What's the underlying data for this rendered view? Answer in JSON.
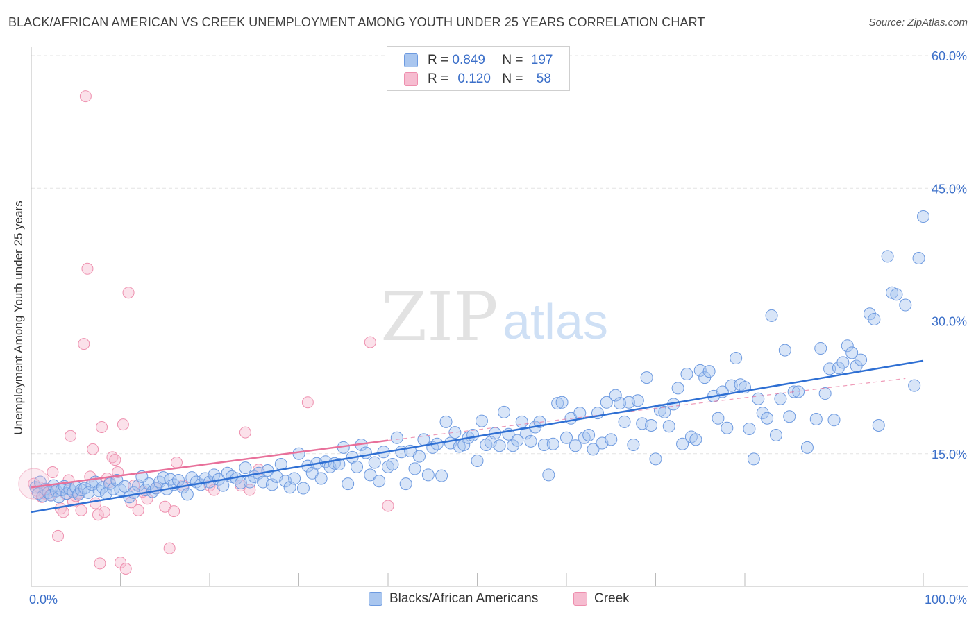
{
  "title": "BLACK/AFRICAN AMERICAN VS CREEK UNEMPLOYMENT AMONG YOUTH UNDER 25 YEARS CORRELATION CHART",
  "source": "Source: ZipAtlas.com",
  "watermark": {
    "zip": "ZIP",
    "atlas": "atlas"
  },
  "legend": {
    "rows": [
      {
        "r_label": "R = ",
        "r_value": "0.849",
        "n_label": "N = ",
        "n_value": "197"
      },
      {
        "r_label": "R = ",
        "r_value": "0.120",
        "n_label": "N = ",
        "n_value": "58"
      }
    ]
  },
  "colors": {
    "blue_fill": "#a9c6ef",
    "blue_stroke": "#6d9ae0",
    "blue_line": "#2e6fd3",
    "pink_fill": "#f6bcd0",
    "pink_stroke": "#ee8fae",
    "pink_line": "#e8709a",
    "tick_label": "#3b6fc9",
    "grid": "#e3e3e3",
    "axis": "#bbbbbb"
  },
  "chart_data": {
    "type": "scatter",
    "title": "BLACK/AFRICAN AMERICAN VS CREEK UNEMPLOYMENT AMONG YOUTH UNDER 25 YEARS CORRELATION CHART",
    "xlabel": "",
    "ylabel": "Unemployment Among Youth under 25 years",
    "xlim": [
      0,
      100
    ],
    "ylim": [
      0,
      60
    ],
    "x_tick_labels": [
      "0.0%",
      "100.0%"
    ],
    "y_ticks": [
      15,
      30,
      45,
      60
    ],
    "y_tick_labels": [
      "15.0%",
      "30.0%",
      "45.0%",
      "60.0%"
    ],
    "grid": true,
    "legend_position": "top-center",
    "series": [
      {
        "name": "Blacks/African Americans",
        "r": 0.849,
        "n": 197,
        "trend": {
          "x": [
            0,
            100
          ],
          "y": [
            8.4,
            25.5
          ]
        },
        "points": [
          [
            0.5,
            11.2
          ],
          [
            0.8,
            10.5
          ],
          [
            1.0,
            11.8
          ],
          [
            1.3,
            10.2
          ],
          [
            1.6,
            11.0
          ],
          [
            1.9,
            10.6
          ],
          [
            2.2,
            10.3
          ],
          [
            2.5,
            11.4
          ],
          [
            2.8,
            10.8
          ],
          [
            3.1,
            10.1
          ],
          [
            3.4,
            10.9
          ],
          [
            3.7,
            11.3
          ],
          [
            4.0,
            10.5
          ],
          [
            4.3,
            11.0
          ],
          [
            4.7,
            10.7
          ],
          [
            5.0,
            11.2
          ],
          [
            5.3,
            10.4
          ],
          [
            5.6,
            10.9
          ],
          [
            6.0,
            11.1
          ],
          [
            6.4,
            10.6
          ],
          [
            6.8,
            11.5
          ],
          [
            7.2,
            11.8
          ],
          [
            7.6,
            10.8
          ],
          [
            8.0,
            11.2
          ],
          [
            8.4,
            10.5
          ],
          [
            8.8,
            11.6
          ],
          [
            9.2,
            11.0
          ],
          [
            9.6,
            12.0
          ],
          [
            10.0,
            10.9
          ],
          [
            10.5,
            11.3
          ],
          [
            11.0,
            10.1
          ],
          [
            11.5,
            10.6
          ],
          [
            12.0,
            11.4
          ],
          [
            12.4,
            12.4
          ],
          [
            12.8,
            10.9
          ],
          [
            13.2,
            11.6
          ],
          [
            13.6,
            10.7
          ],
          [
            14.0,
            11.1
          ],
          [
            14.4,
            11.8
          ],
          [
            14.8,
            12.3
          ],
          [
            15.2,
            11.0
          ],
          [
            15.6,
            12.1
          ],
          [
            16.0,
            11.5
          ],
          [
            16.5,
            12.0
          ],
          [
            17.0,
            11.2
          ],
          [
            17.5,
            10.4
          ],
          [
            18.0,
            12.3
          ],
          [
            18.5,
            11.8
          ],
          [
            19.0,
            11.5
          ],
          [
            19.5,
            12.2
          ],
          [
            20.0,
            11.8
          ],
          [
            20.5,
            12.6
          ],
          [
            21.0,
            12.1
          ],
          [
            21.5,
            11.4
          ],
          [
            22.0,
            12.8
          ],
          [
            22.5,
            12.4
          ],
          [
            23.0,
            12.2
          ],
          [
            23.5,
            11.7
          ],
          [
            24.0,
            13.4
          ],
          [
            24.5,
            11.8
          ],
          [
            25.0,
            12.4
          ],
          [
            25.5,
            12.8
          ],
          [
            26.0,
            11.8
          ],
          [
            26.5,
            13.1
          ],
          [
            27.0,
            11.5
          ],
          [
            27.5,
            12.4
          ],
          [
            28.0,
            13.8
          ],
          [
            28.5,
            11.9
          ],
          [
            29.0,
            11.2
          ],
          [
            29.5,
            12.2
          ],
          [
            30.0,
            15.0
          ],
          [
            30.5,
            11.1
          ],
          [
            31.0,
            13.6
          ],
          [
            31.5,
            12.8
          ],
          [
            32.0,
            13.9
          ],
          [
            32.5,
            12.2
          ],
          [
            33.0,
            14.1
          ],
          [
            33.5,
            13.5
          ],
          [
            34.0,
            13.9
          ],
          [
            34.5,
            13.8
          ],
          [
            35.0,
            15.7
          ],
          [
            35.5,
            11.6
          ],
          [
            36.0,
            14.6
          ],
          [
            36.5,
            13.5
          ],
          [
            37.0,
            16.0
          ],
          [
            37.5,
            15.1
          ],
          [
            38.0,
            12.6
          ],
          [
            38.5,
            14.0
          ],
          [
            39.0,
            11.9
          ],
          [
            39.5,
            15.2
          ],
          [
            40.0,
            13.5
          ],
          [
            40.5,
            13.8
          ],
          [
            41.0,
            16.8
          ],
          [
            41.5,
            15.2
          ],
          [
            42.0,
            11.6
          ],
          [
            42.5,
            15.3
          ],
          [
            43.0,
            13.3
          ],
          [
            43.5,
            14.7
          ],
          [
            44.0,
            16.6
          ],
          [
            44.5,
            12.6
          ],
          [
            45.0,
            15.7
          ],
          [
            45.5,
            16.1
          ],
          [
            46.0,
            12.5
          ],
          [
            46.5,
            18.6
          ],
          [
            47.0,
            16.2
          ],
          [
            47.5,
            17.4
          ],
          [
            48.0,
            15.8
          ],
          [
            48.5,
            16.0
          ],
          [
            49.0,
            16.8
          ],
          [
            49.5,
            17.1
          ],
          [
            50.0,
            14.2
          ],
          [
            50.5,
            18.7
          ],
          [
            51.0,
            16.0
          ],
          [
            51.5,
            16.3
          ],
          [
            52.0,
            17.3
          ],
          [
            52.5,
            15.9
          ],
          [
            53.0,
            19.7
          ],
          [
            53.5,
            17.2
          ],
          [
            54.0,
            15.9
          ],
          [
            54.5,
            16.5
          ],
          [
            55.0,
            18.6
          ],
          [
            55.5,
            17.3
          ],
          [
            56.0,
            16.4
          ],
          [
            56.5,
            18.0
          ],
          [
            57.0,
            18.6
          ],
          [
            57.5,
            16.0
          ],
          [
            58.0,
            12.6
          ],
          [
            58.5,
            16.1
          ],
          [
            59.0,
            20.7
          ],
          [
            59.5,
            20.8
          ],
          [
            60.0,
            16.8
          ],
          [
            60.5,
            19.0
          ],
          [
            61.0,
            15.9
          ],
          [
            61.5,
            19.6
          ],
          [
            62.0,
            16.8
          ],
          [
            62.5,
            17.1
          ],
          [
            63.0,
            15.5
          ],
          [
            63.5,
            19.6
          ],
          [
            64.0,
            16.2
          ],
          [
            64.5,
            20.8
          ],
          [
            65.0,
            16.6
          ],
          [
            65.5,
            21.6
          ],
          [
            66.0,
            20.7
          ],
          [
            66.5,
            18.6
          ],
          [
            67.0,
            20.8
          ],
          [
            67.5,
            16.0
          ],
          [
            68.0,
            21.0
          ],
          [
            68.5,
            18.4
          ],
          [
            69.0,
            23.6
          ],
          [
            69.5,
            18.2
          ],
          [
            70.0,
            14.4
          ],
          [
            70.5,
            19.9
          ],
          [
            71.0,
            19.7
          ],
          [
            71.5,
            18.1
          ],
          [
            72.0,
            20.6
          ],
          [
            72.5,
            22.4
          ],
          [
            73.0,
            16.1
          ],
          [
            73.5,
            24.0
          ],
          [
            74.0,
            16.9
          ],
          [
            74.5,
            16.6
          ],
          [
            75.0,
            24.4
          ],
          [
            75.5,
            23.6
          ],
          [
            76.0,
            24.3
          ],
          [
            76.5,
            21.5
          ],
          [
            77.0,
            19.0
          ],
          [
            77.5,
            22.0
          ],
          [
            78.0,
            17.9
          ],
          [
            78.5,
            22.7
          ],
          [
            79.0,
            25.8
          ],
          [
            79.5,
            22.8
          ],
          [
            80.0,
            22.5
          ],
          [
            80.5,
            17.8
          ],
          [
            81.0,
            14.4
          ],
          [
            81.5,
            21.2
          ],
          [
            82.0,
            19.6
          ],
          [
            82.5,
            19.0
          ],
          [
            83.0,
            30.6
          ],
          [
            83.5,
            17.1
          ],
          [
            84.0,
            21.2
          ],
          [
            84.5,
            26.7
          ],
          [
            85.0,
            19.2
          ],
          [
            85.5,
            22.0
          ],
          [
            86.0,
            22.0
          ],
          [
            87.0,
            15.7
          ],
          [
            88.0,
            18.9
          ],
          [
            88.5,
            26.9
          ],
          [
            89.0,
            21.8
          ],
          [
            89.5,
            24.6
          ],
          [
            90.0,
            18.8
          ],
          [
            90.5,
            24.7
          ],
          [
            91.0,
            25.3
          ],
          [
            91.5,
            27.2
          ],
          [
            92.0,
            26.4
          ],
          [
            92.5,
            24.9
          ],
          [
            93.0,
            25.6
          ],
          [
            94.0,
            30.8
          ],
          [
            94.5,
            30.2
          ],
          [
            95.0,
            18.2
          ],
          [
            96.0,
            37.3
          ],
          [
            96.5,
            33.2
          ],
          [
            97.0,
            33.0
          ],
          [
            98.0,
            31.8
          ],
          [
            99.0,
            22.7
          ],
          [
            99.5,
            37.1
          ],
          [
            100.0,
            41.8
          ]
        ]
      },
      {
        "name": "Creek",
        "r": 0.12,
        "n": 58,
        "trend": {
          "x": [
            0,
            40
          ],
          "y": [
            11.2,
            16.5
          ]
        },
        "trend_extended": {
          "x": [
            40,
            98
          ],
          "y": [
            16.5,
            23.5
          ]
        },
        "points": [
          [
            0.3,
            11.6
          ],
          [
            0.6,
            10.8
          ],
          [
            0.9,
            11.2
          ],
          [
            1.2,
            10.1
          ],
          [
            1.5,
            10.5
          ],
          [
            1.8,
            11.0
          ],
          [
            2.1,
            10.3
          ],
          [
            2.4,
            12.9
          ],
          [
            2.7,
            10.7
          ],
          [
            3.0,
            5.7
          ],
          [
            3.3,
            8.8
          ],
          [
            3.6,
            8.4
          ],
          [
            3.9,
            10.4
          ],
          [
            4.2,
            12.0
          ],
          [
            4.4,
            17.0
          ],
          [
            4.7,
            9.6
          ],
          [
            5.0,
            10.2
          ],
          [
            5.3,
            10.5
          ],
          [
            5.6,
            8.6
          ],
          [
            5.9,
            27.4
          ],
          [
            6.1,
            55.4
          ],
          [
            6.3,
            35.9
          ],
          [
            6.6,
            12.4
          ],
          [
            6.9,
            15.5
          ],
          [
            7.2,
            9.4
          ],
          [
            7.5,
            8.1
          ],
          [
            7.7,
            2.6
          ],
          [
            7.9,
            18.0
          ],
          [
            8.2,
            8.4
          ],
          [
            8.5,
            12.2
          ],
          [
            8.8,
            11.8
          ],
          [
            9.1,
            14.6
          ],
          [
            9.4,
            14.3
          ],
          [
            9.7,
            12.9
          ],
          [
            10.0,
            2.7
          ],
          [
            10.3,
            18.3
          ],
          [
            10.6,
            2.0
          ],
          [
            10.9,
            33.2
          ],
          [
            11.2,
            9.5
          ],
          [
            11.5,
            11.4
          ],
          [
            12.0,
            8.6
          ],
          [
            12.5,
            10.7
          ],
          [
            13.0,
            9.9
          ],
          [
            14.0,
            11.1
          ],
          [
            15.0,
            9.0
          ],
          [
            15.5,
            4.3
          ],
          [
            16.0,
            8.5
          ],
          [
            16.3,
            14.0
          ],
          [
            17.0,
            11.4
          ],
          [
            20.0,
            11.4
          ],
          [
            20.5,
            10.9
          ],
          [
            23.5,
            11.4
          ],
          [
            24.0,
            17.4
          ],
          [
            24.5,
            10.9
          ],
          [
            25.5,
            13.2
          ],
          [
            31.0,
            20.8
          ],
          [
            38.0,
            27.6
          ],
          [
            40.0,
            9.1
          ]
        ]
      }
    ]
  },
  "bottom_legend": [
    {
      "label": "Blacks/African Americans"
    },
    {
      "label": "Creek"
    }
  ]
}
